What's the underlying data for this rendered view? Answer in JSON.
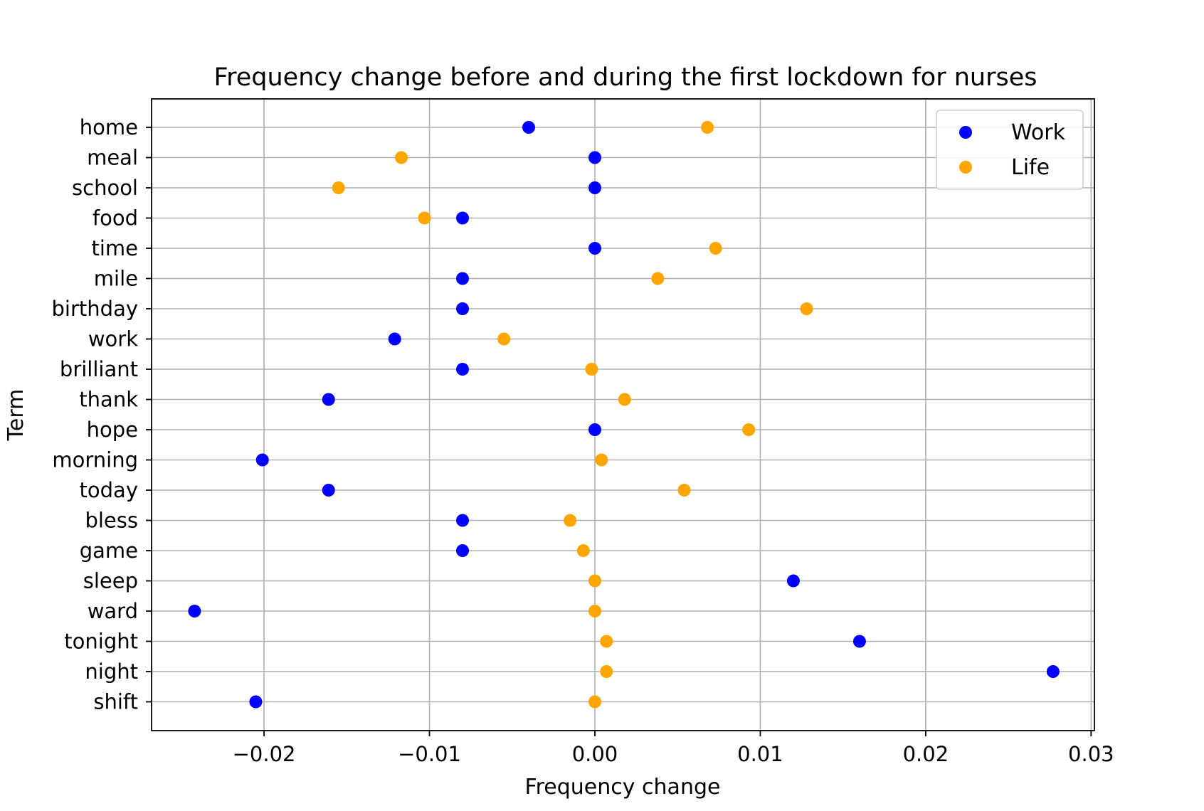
{
  "chart_data": {
    "type": "scatter",
    "title": "Frequency change before and during the first lockdown for nurses",
    "xlabel": "Frequency change",
    "ylabel": "Term",
    "xlim": [
      -0.0268,
      0.0302
    ],
    "xticks": [
      -0.02,
      -0.01,
      0.0,
      0.01,
      0.02,
      0.03
    ],
    "xtick_labels": [
      "−0.02",
      "−0.01",
      "0.00",
      "0.01",
      "0.02",
      "0.03"
    ],
    "categories": [
      "home",
      "meal",
      "school",
      "food",
      "time",
      "mile",
      "birthday",
      "work",
      "brilliant",
      "thank",
      "hope",
      "morning",
      "today",
      "bless",
      "game",
      "sleep",
      "ward",
      "tonight",
      "night",
      "shift"
    ],
    "grid": true,
    "legend_position": "top-right",
    "series": [
      {
        "name": "Work",
        "color": "#0000ff",
        "values": [
          -0.004,
          0.0,
          0.0,
          -0.008,
          0.0,
          -0.008,
          -0.008,
          -0.0121,
          -0.008,
          -0.0161,
          0.0,
          -0.0201,
          -0.0161,
          -0.008,
          -0.008,
          0.012,
          -0.0242,
          0.016,
          0.0277,
          -0.0205
        ]
      },
      {
        "name": "Life",
        "color": "#ffa500",
        "values": [
          0.0068,
          -0.0117,
          -0.0155,
          -0.0103,
          0.0073,
          0.0038,
          0.0128,
          -0.0055,
          -0.0002,
          0.0018,
          0.0093,
          0.0004,
          0.0054,
          -0.0015,
          -0.0007,
          0.0,
          0.0,
          0.0007,
          0.0007,
          0.0
        ]
      }
    ]
  }
}
